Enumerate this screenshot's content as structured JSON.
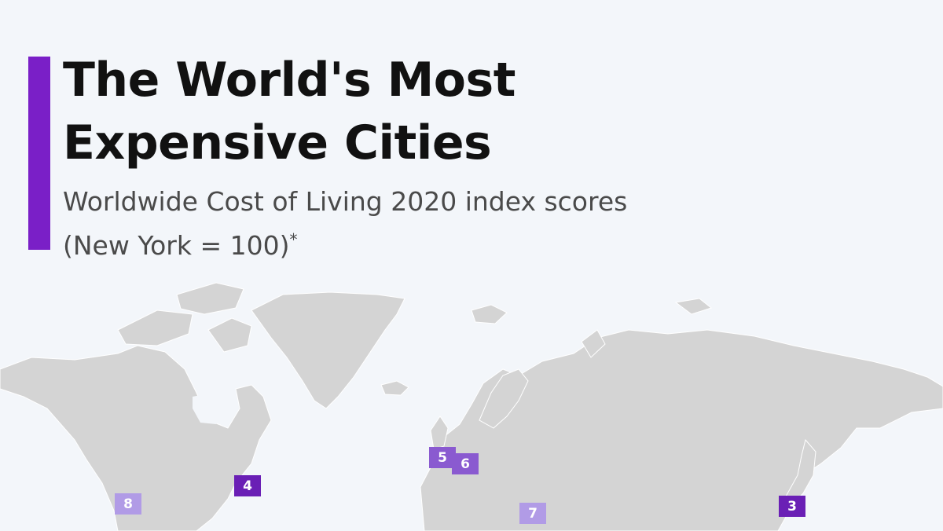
{
  "header": {
    "title_line1": "The World's Most",
    "title_line2": "Expensive Cities",
    "subtitle_line1": "Worldwide Cost of Living 2020 index scores",
    "subtitle_line2": "(New York = 100)",
    "subtitle_mark": "*"
  },
  "colors": {
    "accent": "#7a1fc7",
    "background": "#f3f6fa",
    "land": "#d4d4d4",
    "marker_dark": "#6a1fb5",
    "marker_mid": "#8a5ad0",
    "marker_light": "#b19be6"
  },
  "markers": [
    {
      "rank": "3",
      "shade": "dark"
    },
    {
      "rank": "4",
      "shade": "dark"
    },
    {
      "rank": "5",
      "shade": "mid"
    },
    {
      "rank": "6",
      "shade": "mid"
    },
    {
      "rank": "7",
      "shade": "light"
    },
    {
      "rank": "8",
      "shade": "light"
    }
  ]
}
